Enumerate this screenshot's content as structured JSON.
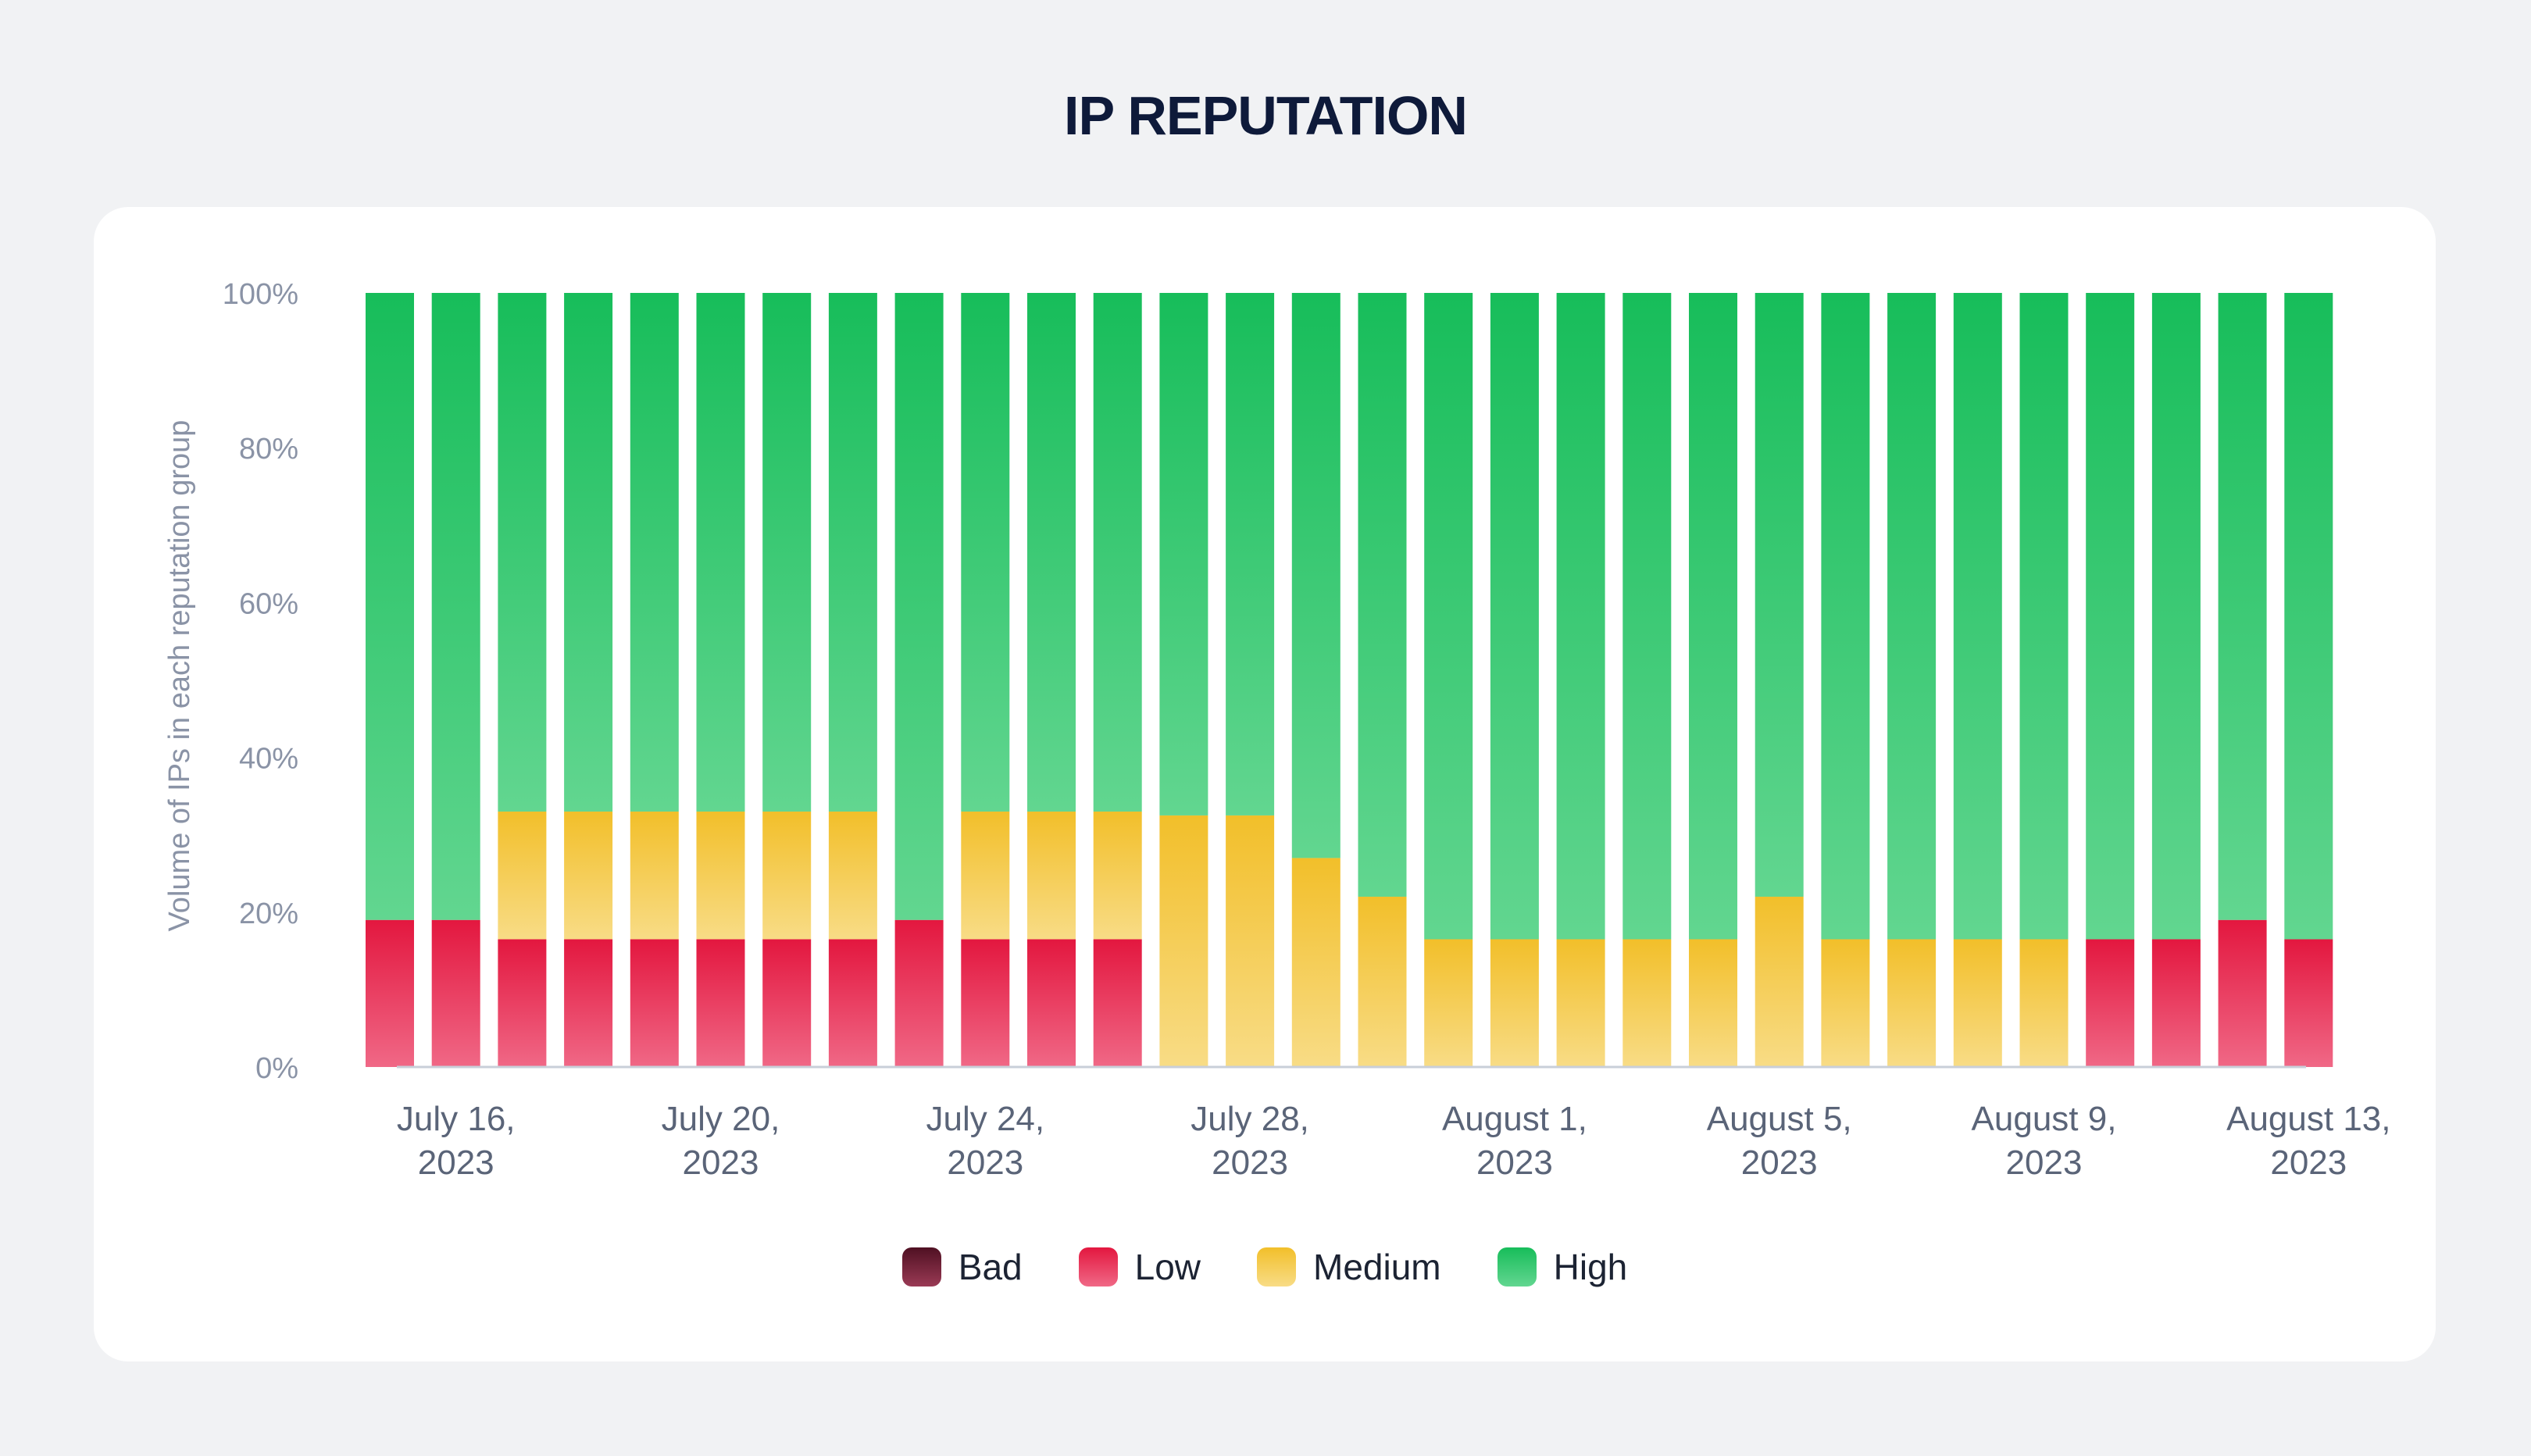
{
  "colors": {
    "bad": [
      "#4f1022",
      "#9a3a55"
    ],
    "low": [
      "#e3173f",
      "#f06886"
    ],
    "medium": [
      "#f2bf2a",
      "#f8dc86"
    ],
    "high": [
      "#17bd5a",
      "#62d690"
    ],
    "axis_text": "#8a93a6",
    "date_text": "#5a6478"
  },
  "chart_data": {
    "type": "bar",
    "stacked": true,
    "title": "IP REPUTATION",
    "ylabel": "Volume of IPs in each reputation group",
    "xlabel": "",
    "ylim": [
      0,
      100
    ],
    "yticks": [
      "0%",
      "20%",
      "40%",
      "60%",
      "80%",
      "100%"
    ],
    "categories": [
      "2023-07-15",
      "2023-07-16",
      "2023-07-17",
      "2023-07-18",
      "2023-07-19",
      "2023-07-20",
      "2023-07-21",
      "2023-07-22",
      "2023-07-23",
      "2023-07-24",
      "2023-07-25",
      "2023-07-26",
      "2023-07-27",
      "2023-07-28",
      "2023-07-29",
      "2023-07-30",
      "2023-07-31",
      "2023-08-01",
      "2023-08-02",
      "2023-08-03",
      "2023-08-04",
      "2023-08-05",
      "2023-08-06",
      "2023-08-07",
      "2023-08-08",
      "2023-08-09",
      "2023-08-10",
      "2023-08-11",
      "2023-08-12",
      "2023-08-13"
    ],
    "xtick_labels": [
      {
        "index": 1,
        "line1": "July 16,",
        "line2": "2023"
      },
      {
        "index": 5,
        "line1": "July 20,",
        "line2": "2023"
      },
      {
        "index": 9,
        "line1": "July 24,",
        "line2": "2023"
      },
      {
        "index": 13,
        "line1": "July 28,",
        "line2": "2023"
      },
      {
        "index": 17,
        "line1": "August 1,",
        "line2": "2023"
      },
      {
        "index": 21,
        "line1": "August 5,",
        "line2": "2023"
      },
      {
        "index": 25,
        "line1": "August 9,",
        "line2": "2023"
      },
      {
        "index": 29,
        "line1": "August 13,",
        "line2": "2023"
      }
    ],
    "series": [
      {
        "name": "Bad",
        "key": "bad",
        "values": [
          0,
          0,
          0,
          0,
          0,
          0,
          0,
          0,
          0,
          0,
          0,
          0,
          0,
          0,
          0,
          0,
          0,
          0,
          0,
          0,
          0,
          0,
          0,
          0,
          0,
          0,
          0,
          0,
          0,
          0
        ]
      },
      {
        "name": "Low",
        "key": "low",
        "values": [
          19,
          19,
          16.5,
          16.5,
          16.5,
          16.5,
          16.5,
          16.5,
          19,
          16.5,
          16.5,
          16.5,
          0,
          0,
          0,
          0,
          0,
          0,
          0,
          0,
          0,
          0,
          0,
          0,
          0,
          0,
          16.5,
          16.5,
          19,
          16.5
        ]
      },
      {
        "name": "Medium",
        "key": "medium",
        "values": [
          0,
          0,
          16.5,
          16.5,
          16.5,
          16.5,
          16.5,
          16.5,
          0,
          16.5,
          16.5,
          16.5,
          32.5,
          32.5,
          27,
          22,
          16.5,
          16.5,
          16.5,
          16.5,
          16.5,
          22,
          16.5,
          16.5,
          16.5,
          16.5,
          0,
          0,
          0,
          0
        ]
      },
      {
        "name": "High",
        "key": "high",
        "values": [
          81,
          81,
          67,
          67,
          67,
          67,
          67,
          67,
          81,
          67,
          67,
          67,
          67.5,
          67.5,
          73,
          78,
          83.5,
          83.5,
          83.5,
          83.5,
          83.5,
          78,
          83.5,
          83.5,
          83.5,
          83.5,
          83.5,
          83.5,
          81,
          83.5
        ]
      }
    ],
    "legend_position": "bottom-center"
  }
}
